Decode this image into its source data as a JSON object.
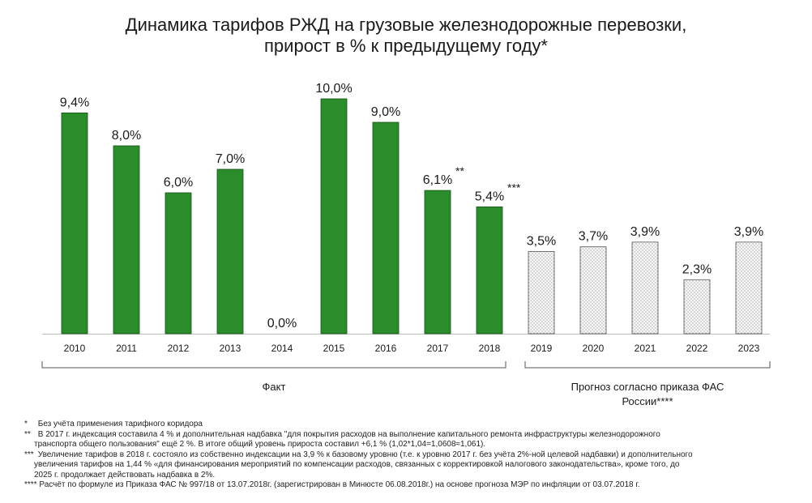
{
  "chart_data": {
    "type": "bar",
    "title": "Динамика тарифов РЖД на грузовые железнодорожные перевозки,",
    "subtitle": "прирост в % к предыдущему году*",
    "categories": [
      "2010",
      "2011",
      "2012",
      "2013",
      "2014",
      "2015",
      "2016",
      "2017",
      "2018",
      "2019",
      "2020",
      "2021",
      "2022",
      "2023"
    ],
    "values": [
      9.4,
      8.0,
      6.0,
      7.0,
      0.0,
      10.0,
      9.0,
      6.1,
      5.4,
      3.5,
      3.7,
      3.9,
      2.3,
      3.9
    ],
    "value_labels": [
      "9,4%",
      "8,0%",
      "6,0%",
      "7,0%",
      "0,0%",
      "10,0%",
      "9,0%",
      "6,1%",
      "5,4%",
      "3,5%",
      "3,7%",
      "3,9%",
      "2,3%",
      "3,9%"
    ],
    "label_marks": [
      "",
      "",
      "",
      "",
      "",
      "",
      "",
      "**",
      "***",
      "",
      "",
      "",
      "",
      ""
    ],
    "kind": [
      "fact",
      "fact",
      "fact",
      "fact",
      "fact",
      "fact",
      "fact",
      "fact",
      "fact",
      "forecast",
      "forecast",
      "forecast",
      "forecast",
      "forecast"
    ],
    "ylim": [
      0,
      10
    ],
    "groups": [
      {
        "label": "Факт",
        "from": 0,
        "to": 8
      },
      {
        "label_lines": [
          "Прогноз согласно приказа ФАС",
          "России****"
        ],
        "from": 9,
        "to": 13
      }
    ],
    "colors": {
      "fact": "#2a8c2a",
      "fact_border": "#145214",
      "forecast": "#f4f4f4",
      "forecast_dots": "#8a8a8a"
    },
    "grid": false
  },
  "footnotes": [
    {
      "mark": "*",
      "text": "Без учёта применения тарифного коридора"
    },
    {
      "mark": "**",
      "text": "В 2017 г. индексация составила 4 % и дополнительная надбавка \"для покрытия расходов на выполнение капитального ремонта инфраструктуры железнодорожного",
      "cont": "транспорта общего пользования\" ещё 2 %. В итоге общий уровень прироста составил +6,1 % (1,02*1,04=1,0608≈1,061)."
    },
    {
      "mark": "***",
      "text": "Увеличение тарифов в 2018 г. состояло из собственно индексации на 3,9 % к базовому уровню (т.е. к уровню 2017 г. без учёта 2%-ной целевой надбавки) и дополнительного",
      "cont": "увеличения тарифов на 1,44 % «для финансирования мероприятий по компенсации расходов, связанных с корректировкой налогового законодательства», кроме того, до",
      "cont2": "2025 г. продолжает действовать надбавка в 2%."
    },
    {
      "mark": "****",
      "text": "Расчёт по формуле из Приказа ФАС № 997/18 от 13.07.2018г. (зарегистрирован в Минюсте 06.08.2018г.) на основе прогноза МЭР по инфляции от 03.07.2018 г."
    }
  ]
}
